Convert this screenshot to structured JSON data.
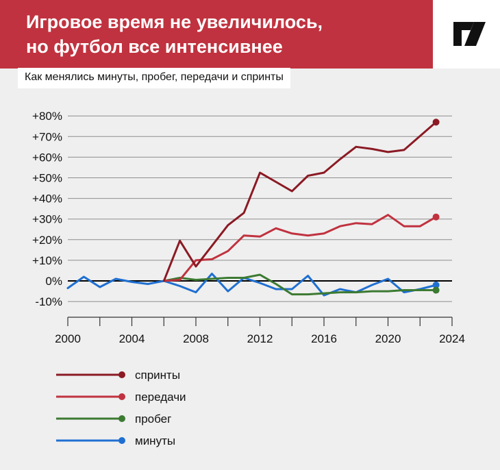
{
  "header": {
    "title_line1": "Игровое время не увеличилось,",
    "title_line2": "но футбол все интенсивнее",
    "subtitle": "Как менялись минуты, пробег, передачи и спринты",
    "bg_color": "#c0323f",
    "logo_icon": "publisher-logo-icon"
  },
  "chart_data": {
    "type": "line",
    "title": "Игровое время не увеличилось, но футбол все интенсивнее",
    "subtitle": "Как менялись минуты, пробег, передачи и спринты",
    "xlim": [
      2000,
      2024
    ],
    "ylim": [
      -10,
      80
    ],
    "x_ticks": [
      2000,
      2004,
      2008,
      2012,
      2016,
      2020,
      2024
    ],
    "x_tick_labels": [
      "2000",
      "2004",
      "2008",
      "2012",
      "2016",
      "2020",
      "2024"
    ],
    "x_minor_tick_step": 2,
    "y_ticks": [
      -10,
      0,
      10,
      20,
      30,
      40,
      50,
      60,
      70,
      80
    ],
    "y_tick_labels": [
      "-10%",
      "0%",
      "+10%",
      "+20%",
      "+30%",
      "+40%",
      "+50%",
      "+60%",
      "+70%",
      "+80%"
    ],
    "grid": true,
    "zero_line": true,
    "legend_position": "bottom-left",
    "series": [
      {
        "name": "спринты",
        "color": "#8b1a24",
        "x": [
          2006,
          2007,
          2008,
          2009,
          2010,
          2011,
          2012,
          2013,
          2014,
          2015,
          2016,
          2017,
          2018,
          2019,
          2020,
          2021,
          2023
        ],
        "y": [
          0,
          19.5,
          7,
          17,
          27,
          33,
          52.5,
          48,
          43.5,
          51,
          52.5,
          59,
          65,
          64,
          62.5,
          63.5,
          77
        ]
      },
      {
        "name": "передачи",
        "color": "#c0323f",
        "x": [
          2006,
          2007,
          2008,
          2009,
          2010,
          2011,
          2012,
          2013,
          2014,
          2015,
          2016,
          2017,
          2018,
          2019,
          2020,
          2021,
          2022,
          2023
        ],
        "y": [
          0,
          0.5,
          10,
          10.5,
          14.5,
          22,
          21.5,
          25.5,
          23,
          22,
          23,
          26.5,
          28,
          27.5,
          32,
          26.5,
          26.5,
          31
        ]
      },
      {
        "name": "пробег",
        "color": "#3c7a32",
        "x": [
          2006,
          2007,
          2008,
          2009,
          2010,
          2011,
          2012,
          2013,
          2014,
          2015,
          2016,
          2017,
          2018,
          2019,
          2020,
          2021,
          2022,
          2023
        ],
        "y": [
          0,
          1.5,
          0.5,
          1,
          1.5,
          1.5,
          3,
          -1.5,
          -6.5,
          -6.5,
          -6,
          -5.5,
          -5.5,
          -5,
          -5,
          -4.5,
          -4.5,
          -4.5
        ]
      },
      {
        "name": "минуты",
        "color": "#1f6fd1",
        "x": [
          2000,
          2001,
          2002,
          2003,
          2004,
          2005,
          2006,
          2007,
          2008,
          2009,
          2010,
          2011,
          2012,
          2013,
          2014,
          2015,
          2016,
          2017,
          2018,
          2019,
          2020,
          2021,
          2022,
          2023
        ],
        "y": [
          -3.5,
          2,
          -3,
          1,
          -0.5,
          -1.5,
          0,
          -2.5,
          -5.5,
          3.5,
          -5,
          1.5,
          -1,
          -4,
          -4,
          2.5,
          -7,
          -4,
          -5.5,
          -2,
          1,
          -5.5,
          -4,
          -2
        ]
      }
    ]
  }
}
